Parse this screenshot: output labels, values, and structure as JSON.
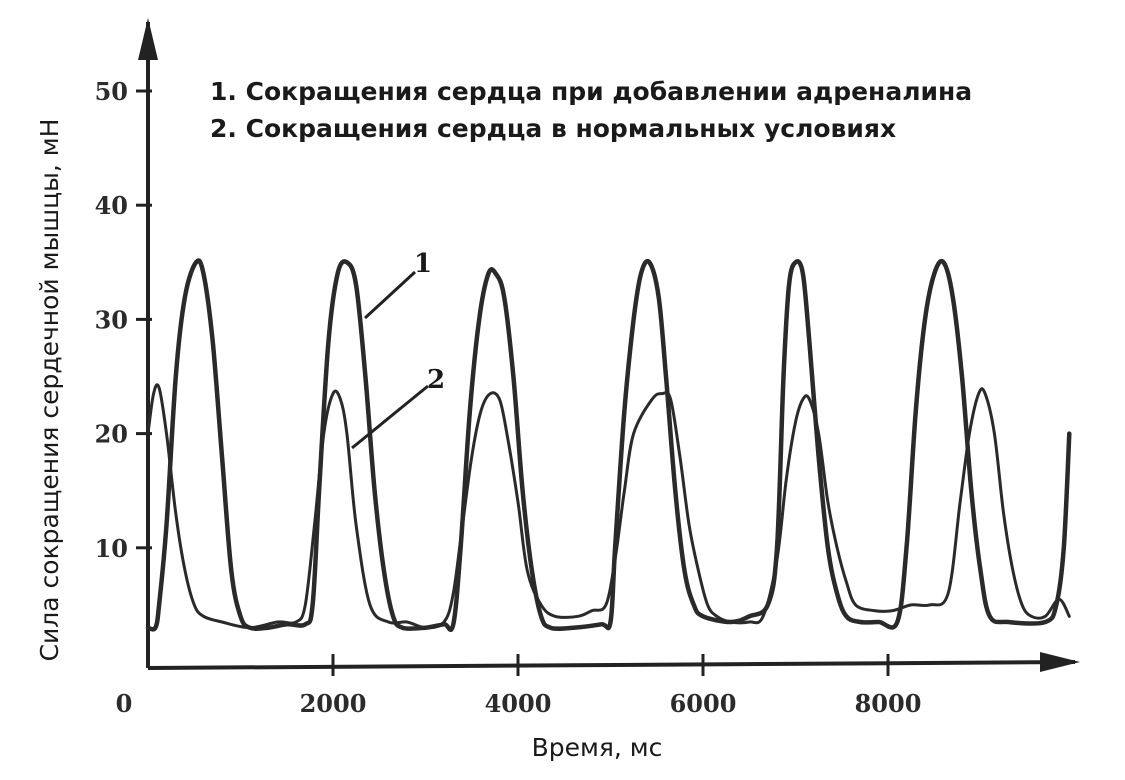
{
  "chart_data": {
    "type": "line",
    "xlabel": "Время, мс",
    "ylabel": "Сила сокращения сердечной мышцы, мН",
    "xlim": [
      0,
      10000
    ],
    "ylim": [
      0,
      55
    ],
    "x_ticks": [
      0,
      2000,
      4000,
      6000,
      8000
    ],
    "y_ticks": [
      10,
      20,
      30,
      40,
      50
    ],
    "grid": false,
    "legend": {
      "placement": "top",
      "entries": [
        "1. Сокращения сердца при добавлении адреналина",
        "2. Сокращения сердца в нормальных условиях"
      ]
    },
    "series": [
      {
        "name": "1",
        "points": [
          [
            0,
            3
          ],
          [
            80,
            3
          ],
          [
            120,
            5
          ],
          [
            200,
            12
          ],
          [
            300,
            25
          ],
          [
            400,
            32
          ],
          [
            520,
            35
          ],
          [
            600,
            34
          ],
          [
            700,
            28
          ],
          [
            800,
            18
          ],
          [
            900,
            8
          ],
          [
            1000,
            4
          ],
          [
            1100,
            3
          ],
          [
            1300,
            3
          ],
          [
            1500,
            3.3
          ],
          [
            1700,
            3.3
          ],
          [
            1780,
            5
          ],
          [
            1850,
            15
          ],
          [
            1950,
            28
          ],
          [
            2050,
            34
          ],
          [
            2150,
            35
          ],
          [
            2250,
            33
          ],
          [
            2350,
            25
          ],
          [
            2450,
            15
          ],
          [
            2550,
            8
          ],
          [
            2650,
            4
          ],
          [
            2750,
            3
          ],
          [
            3000,
            3
          ],
          [
            3200,
            3.3
          ],
          [
            3300,
            3.3
          ],
          [
            3380,
            10
          ],
          [
            3480,
            22
          ],
          [
            3580,
            30
          ],
          [
            3680,
            34
          ],
          [
            3760,
            34
          ],
          [
            3850,
            32
          ],
          [
            3950,
            25
          ],
          [
            4050,
            15
          ],
          [
            4150,
            8
          ],
          [
            4250,
            4
          ],
          [
            4350,
            3
          ],
          [
            4600,
            3
          ],
          [
            4900,
            3.3
          ],
          [
            5000,
            3.5
          ],
          [
            5050,
            10
          ],
          [
            5150,
            22
          ],
          [
            5250,
            30
          ],
          [
            5330,
            34
          ],
          [
            5420,
            35
          ],
          [
            5520,
            32
          ],
          [
            5600,
            25
          ],
          [
            5700,
            15
          ],
          [
            5800,
            8
          ],
          [
            5900,
            5
          ],
          [
            6000,
            4
          ],
          [
            6300,
            3.5
          ],
          [
            6500,
            4
          ],
          [
            6700,
            5
          ],
          [
            6800,
            10
          ],
          [
            6870,
            25
          ],
          [
            6930,
            33
          ],
          [
            7000,
            35
          ],
          [
            7080,
            34
          ],
          [
            7150,
            28
          ],
          [
            7250,
            18
          ],
          [
            7350,
            10
          ],
          [
            7450,
            6
          ],
          [
            7550,
            4
          ],
          [
            7700,
            3.5
          ],
          [
            7900,
            3.5
          ],
          [
            8100,
            3.5
          ],
          [
            8200,
            10
          ],
          [
            8300,
            22
          ],
          [
            8400,
            30
          ],
          [
            8500,
            34
          ],
          [
            8600,
            35
          ],
          [
            8700,
            32
          ],
          [
            8800,
            25
          ],
          [
            8900,
            15
          ],
          [
            9000,
            8
          ],
          [
            9100,
            4
          ],
          [
            9300,
            3.5
          ],
          [
            9700,
            3.5
          ],
          [
            9820,
            5
          ],
          [
            9900,
            10
          ],
          [
            9960,
            20
          ]
        ]
      },
      {
        "name": "2",
        "points": [
          [
            0,
            20
          ],
          [
            60,
            23.5
          ],
          [
            120,
            24
          ],
          [
            200,
            20
          ],
          [
            300,
            13
          ],
          [
            400,
            8
          ],
          [
            500,
            5
          ],
          [
            600,
            4
          ],
          [
            800,
            3.5
          ],
          [
            1100,
            3
          ],
          [
            1400,
            3.5
          ],
          [
            1600,
            3.5
          ],
          [
            1700,
            5
          ],
          [
            1800,
            12
          ],
          [
            1900,
            20
          ],
          [
            2000,
            23.5
          ],
          [
            2080,
            23
          ],
          [
            2150,
            20
          ],
          [
            2250,
            12
          ],
          [
            2400,
            5
          ],
          [
            2600,
            3.5
          ],
          [
            2800,
            3.5
          ],
          [
            3000,
            3
          ],
          [
            3200,
            3.5
          ],
          [
            3300,
            6
          ],
          [
            3400,
            12
          ],
          [
            3500,
            18
          ],
          [
            3600,
            22
          ],
          [
            3700,
            23.5
          ],
          [
            3800,
            23
          ],
          [
            3880,
            20
          ],
          [
            4000,
            14
          ],
          [
            4100,
            8
          ],
          [
            4250,
            5
          ],
          [
            4400,
            4
          ],
          [
            4650,
            4
          ],
          [
            4800,
            4.5
          ],
          [
            4950,
            5
          ],
          [
            5050,
            9
          ],
          [
            5150,
            15
          ],
          [
            5250,
            20
          ],
          [
            5450,
            23
          ],
          [
            5560,
            23.5
          ],
          [
            5650,
            23
          ],
          [
            5750,
            18
          ],
          [
            5850,
            12
          ],
          [
            5950,
            8
          ],
          [
            6050,
            5
          ],
          [
            6150,
            4
          ],
          [
            6300,
            3.5
          ],
          [
            6500,
            3.5
          ],
          [
            6650,
            4
          ],
          [
            6800,
            9
          ],
          [
            6900,
            16
          ],
          [
            7000,
            21
          ],
          [
            7080,
            23
          ],
          [
            7150,
            23
          ],
          [
            7250,
            20
          ],
          [
            7350,
            14
          ],
          [
            7450,
            10
          ],
          [
            7550,
            7
          ],
          [
            7650,
            5
          ],
          [
            7850,
            4.5
          ],
          [
            8050,
            4.5
          ],
          [
            8250,
            5
          ],
          [
            8450,
            5
          ],
          [
            8650,
            6
          ],
          [
            8780,
            14
          ],
          [
            8880,
            20
          ],
          [
            8980,
            23.5
          ],
          [
            9050,
            23.5
          ],
          [
            9150,
            20
          ],
          [
            9250,
            13
          ],
          [
            9350,
            8
          ],
          [
            9450,
            5
          ],
          [
            9550,
            4
          ],
          [
            9700,
            4
          ],
          [
            9850,
            5.5
          ],
          [
            9960,
            4
          ]
        ]
      }
    ],
    "curve_labels": [
      "1",
      "2"
    ]
  }
}
